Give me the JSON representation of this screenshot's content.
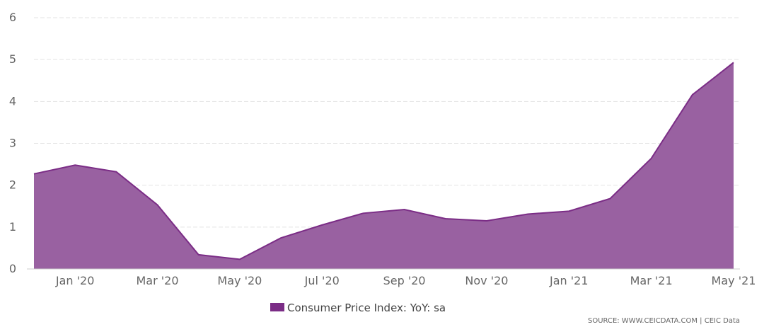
{
  "chart_data": {
    "type": "area",
    "x": [
      "Dec '19",
      "Jan '20",
      "Feb '20",
      "Mar '20",
      "Apr '20",
      "May '20",
      "Jun '20",
      "Jul '20",
      "Aug '20",
      "Sep '20",
      "Oct '20",
      "Nov '20",
      "Dec '20",
      "Jan '21",
      "Feb '21",
      "Mar '21",
      "Apr '21",
      "May '21"
    ],
    "series": [
      {
        "name": "Consumer Price Index: YoY: sa",
        "values": [
          2.27,
          2.48,
          2.32,
          1.53,
          0.34,
          0.23,
          0.74,
          1.05,
          1.33,
          1.42,
          1.2,
          1.15,
          1.31,
          1.38,
          1.68,
          2.64,
          4.16,
          4.93
        ]
      }
    ],
    "x_tick_labels": [
      "Jan '20",
      "Mar '20",
      "May '20",
      "Jul '20",
      "Sep '20",
      "Nov '20",
      "Jan '21",
      "Mar '21",
      "May '21"
    ],
    "y_ticks": [
      "0",
      "1",
      "2",
      "3",
      "4",
      "5",
      "6"
    ],
    "ylim": [
      0,
      6
    ],
    "grid": true,
    "legend_position": "bottom-center",
    "source": "SOURCE: WWW.CEICDATA.COM | CEIC Data",
    "colors": {
      "fill": "#9961a1",
      "line": "#7b2d86",
      "legend_swatch": "#7b2d86",
      "grid": "#e3e3e3"
    }
  }
}
